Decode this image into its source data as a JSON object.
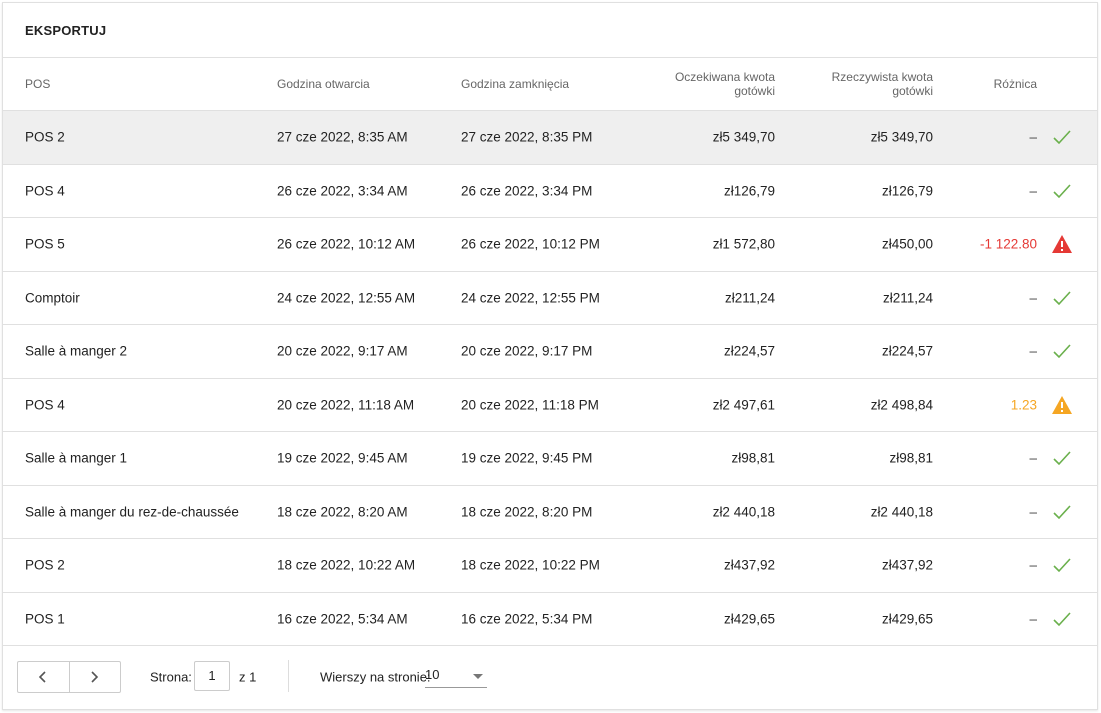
{
  "header": {
    "title": "EKSPORTUJ"
  },
  "table": {
    "columns": [
      "POS",
      "Godzina otwarcia",
      "Godzina zamknięcia",
      "Oczekiwana kwota gotówki",
      "Rzeczywista kwota gotówki",
      "Różnica"
    ],
    "rows": [
      [
        "POS 2",
        "27 cze 2022, 8:35 AM",
        "27 cze 2022, 8:35 PM",
        "zł5 349,70",
        "zł5 349,70",
        "–"
      ],
      [
        "POS 4",
        "26 cze 2022, 3:34 AM",
        "26 cze 2022, 3:34 PM",
        "zł126,79",
        "zł126,79",
        "–"
      ],
      [
        "POS 5",
        "26 cze 2022, 10:12 AM",
        "26 cze 2022, 10:12 PM",
        "zł1 572,80",
        "zł450,00",
        "-1 122.80"
      ],
      [
        "Comptoir",
        "24 cze 2022, 12:55 AM",
        "24 cze 2022, 12:55 PM",
        "zł211,24",
        "zł211,24",
        "–"
      ],
      [
        "Salle à manger 2",
        "20 cze 2022, 9:17 AM",
        "20 cze 2022, 9:17 PM",
        "zł224,57",
        "zł224,57",
        "–"
      ],
      [
        "POS 4",
        "20 cze 2022, 11:18 AM",
        "20 cze 2022, 11:18 PM",
        "zł2 497,61",
        "zł2 498,84",
        "1.23"
      ],
      [
        "Salle à manger 1",
        "19 cze 2022, 9:45 AM",
        "19 cze 2022, 9:45 PM",
        "zł98,81",
        "zł98,81",
        "–"
      ],
      [
        "Salle à manger du rez-de-chaussée",
        "18 cze 2022, 8:20 AM",
        "18 cze 2022, 8:20 PM",
        "zł2 440,18",
        "zł2 440,18",
        "–"
      ],
      [
        "POS 2",
        "18 cze 2022, 10:22 AM",
        "18 cze 2022, 10:22 PM",
        "zł437,92",
        "zł437,92",
        "–"
      ],
      [
        "POS 1",
        "16 cze 2022, 5:34 AM",
        "16 cze 2022, 5:34 PM",
        "zł429,65",
        "zł429,65",
        "–"
      ]
    ]
  },
  "footer": {
    "page_label": "Strona:",
    "page": "1",
    "page_of": "z 1",
    "rows_label": "Wierszy na stronie:",
    "rows_per_page": "10"
  }
}
